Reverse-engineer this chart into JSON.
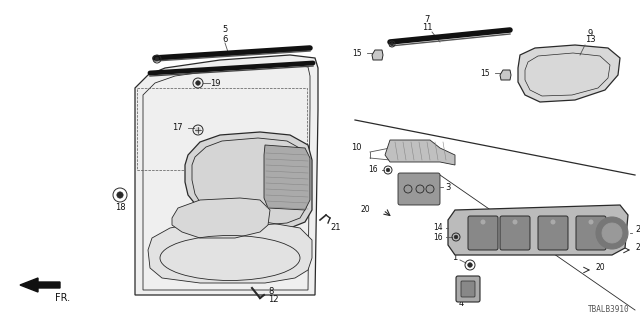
{
  "background_color": "#ffffff",
  "diagram_id": "TBALB3910",
  "figsize": [
    6.4,
    3.2
  ],
  "dpi": 100
}
